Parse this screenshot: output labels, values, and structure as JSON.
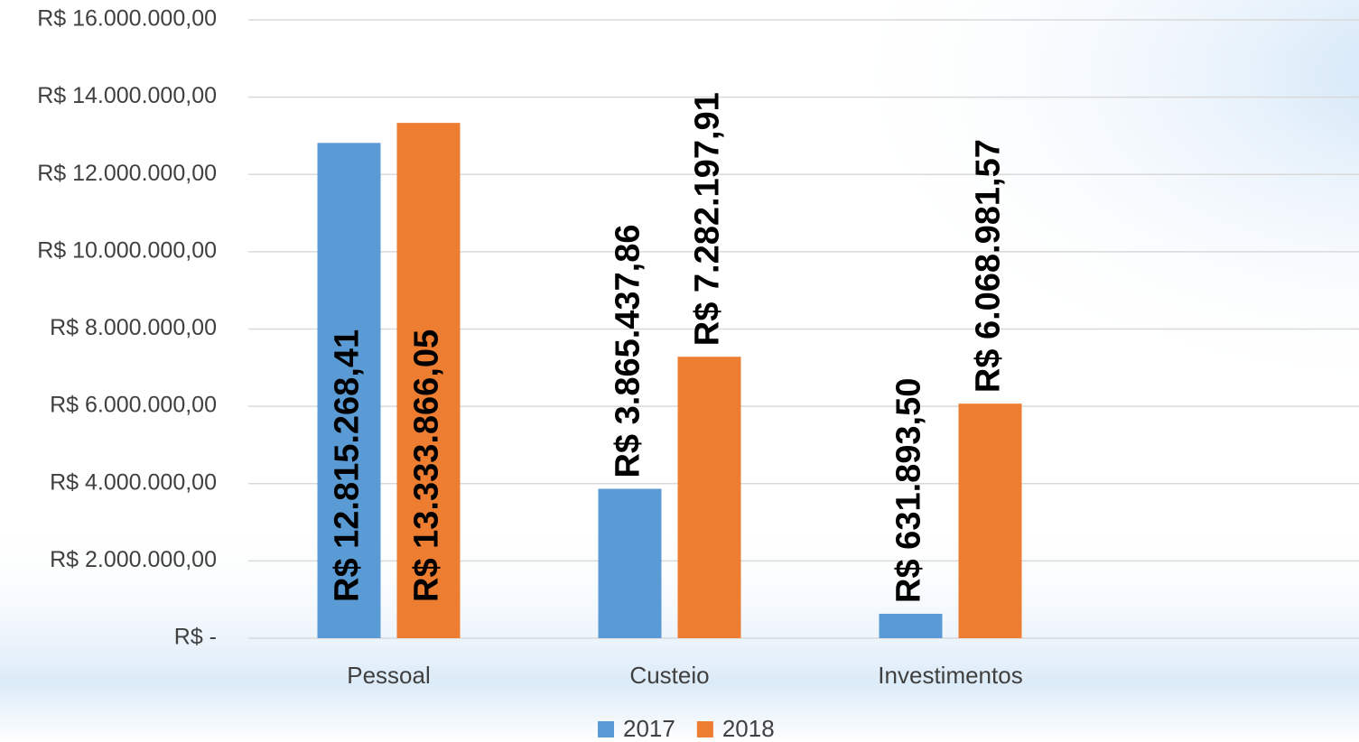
{
  "chart_data": {
    "type": "bar",
    "categories": [
      "Pessoal",
      "Custeio",
      "Investimentos"
    ],
    "series": [
      {
        "name": "2017",
        "color": "#5b9bd5",
        "values": [
          12815268.41,
          3865437.86,
          631893.5
        ],
        "value_labels": [
          "R$ 12.815.268,41",
          "R$ 3.865.437,86",
          "R$ 631.893,50"
        ]
      },
      {
        "name": "2018",
        "color": "#ed7d31",
        "values": [
          13333866.05,
          7282197.91,
          6068981.57
        ],
        "value_labels": [
          "R$ 13.333.866,05",
          "R$ 7.282.197,91",
          "R$ 6.068.981,57"
        ]
      }
    ],
    "ylim": [
      0,
      16000000
    ],
    "yticks": [
      {
        "value": 0,
        "label": "R$ -"
      },
      {
        "value": 2000000,
        "label": "R$ 2.000.000,00"
      },
      {
        "value": 4000000,
        "label": "R$ 4.000.000,00"
      },
      {
        "value": 6000000,
        "label": "R$ 6.000.000,00"
      },
      {
        "value": 8000000,
        "label": "R$ 8.000.000,00"
      },
      {
        "value": 10000000,
        "label": "R$ 10.000.000,00"
      },
      {
        "value": 12000000,
        "label": "R$ 12.000.000,00"
      },
      {
        "value": 14000000,
        "label": "R$ 14.000.000,00"
      },
      {
        "value": 16000000,
        "label": "R$ 16.000.000,00"
      }
    ],
    "grid": true,
    "legend": "bottom"
  }
}
